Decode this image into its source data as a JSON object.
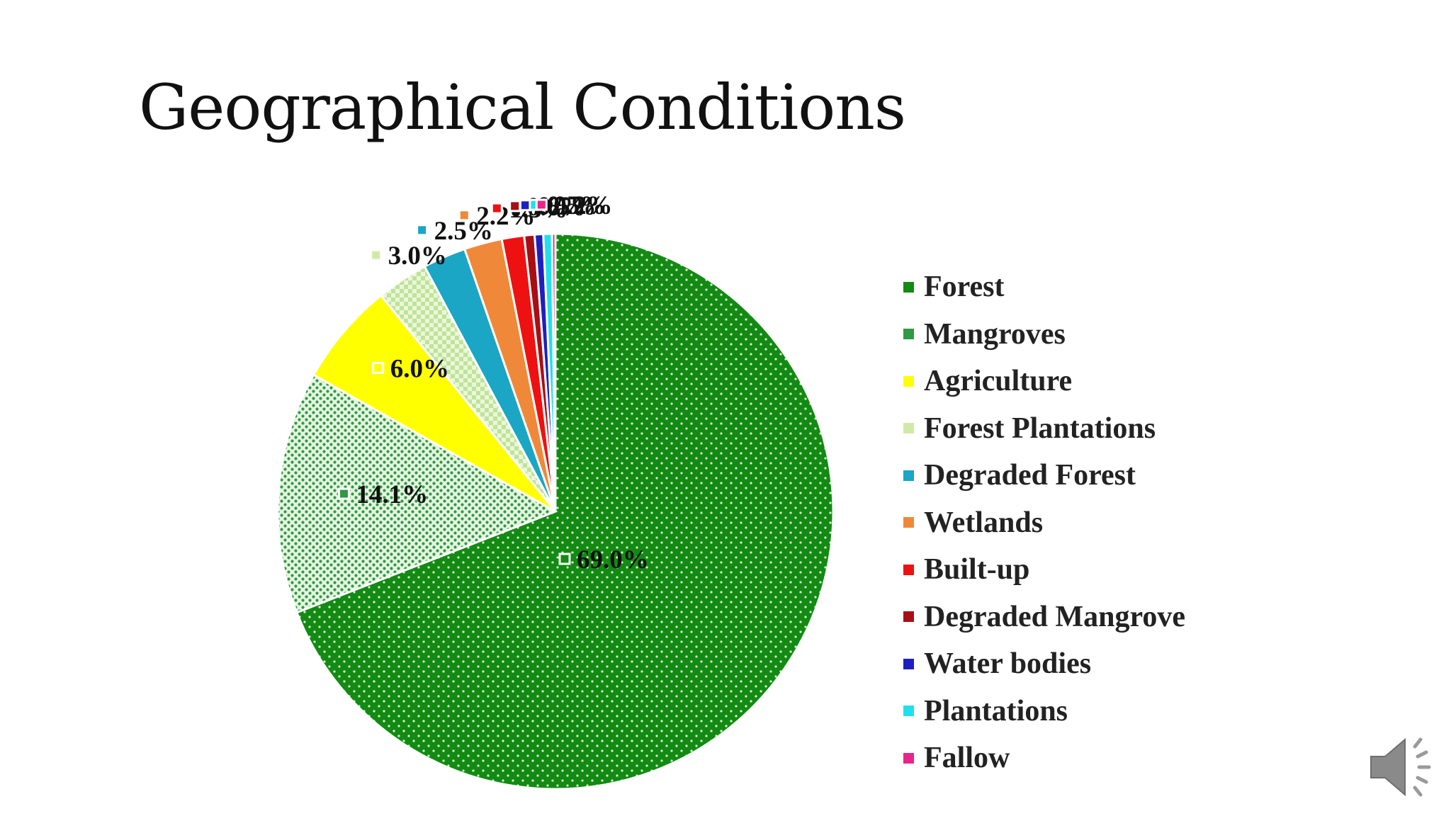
{
  "slide": {
    "title": "Geographical Conditions"
  },
  "chart_data": {
    "type": "pie",
    "title": "",
    "categories": [
      "Forest",
      "Mangroves",
      "Agriculture",
      "Forest Plantations",
      "Degraded Forest",
      "Wetlands",
      "Built-up",
      "Degraded Mangrove",
      "Water bodies",
      "Plantations",
      "Fallow"
    ],
    "values": [
      69.0,
      14.1,
      6.0,
      3.0,
      2.5,
      2.2,
      1.3,
      0.6,
      0.5,
      0.5,
      0.2
    ],
    "data_labels": [
      "69.0%",
      "14.1%",
      "6.0%",
      "3.0%",
      "2.5%",
      "2.2%",
      "1.3%",
      "0.6%",
      "0.5%",
      "0.5%",
      "0.2%"
    ],
    "colors": [
      "#138a13",
      "#2e9a44",
      "#ffff00",
      "#cfeaa8",
      "#1aa6c4",
      "#f0883a",
      "#ee1111",
      "#a80f14",
      "#1f1fbf",
      "#20e0ee",
      "#e8268a"
    ],
    "legend_position": "right",
    "start": "12 o'clock, clockwise"
  },
  "audio": {
    "icon": "speaker-icon"
  }
}
